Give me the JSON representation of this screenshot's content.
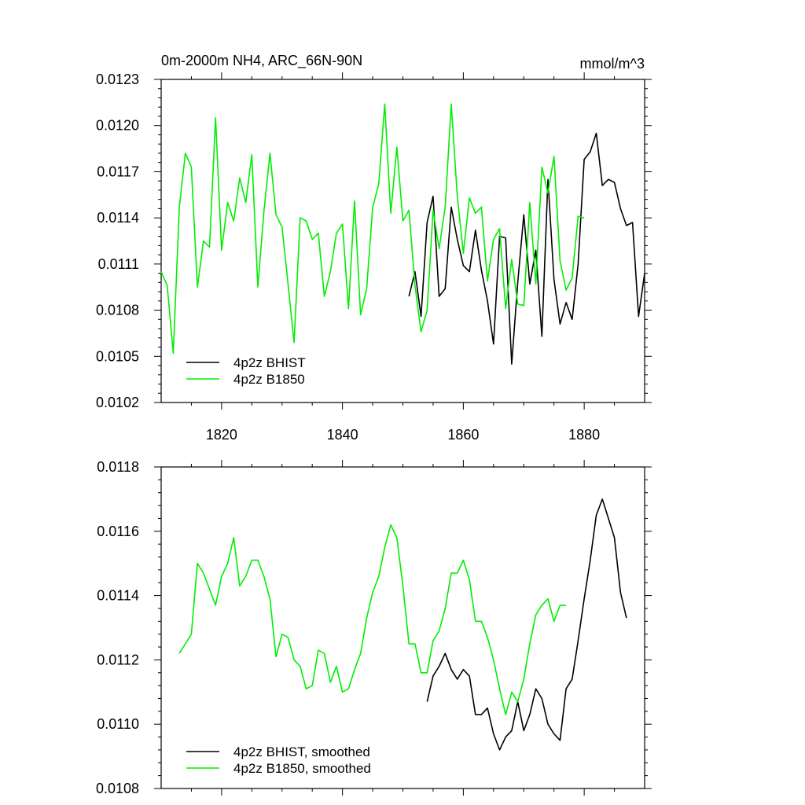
{
  "colors": {
    "bhist": "#000000",
    "b1850": "#00ee00",
    "frame": "#000000"
  },
  "chart_data": [
    {
      "type": "line",
      "title": "0m-2000m NH4, ARC_66N-90N",
      "units": "mmol/m^3",
      "xlim": [
        1810,
        1890
      ],
      "ylim": [
        0.0102,
        0.0123
      ],
      "xticks": [
        1820,
        1840,
        1860,
        1880
      ],
      "xtick_labels": [
        "1820",
        "1840",
        "1860",
        "1880"
      ],
      "yticks": [
        0.0102,
        0.0105,
        0.0108,
        0.0111,
        0.0114,
        0.0117,
        0.012,
        0.0123
      ],
      "ytick_labels": [
        "0.0102",
        "0.0105",
        "0.0108",
        "0.0111",
        "0.0114",
        "0.0117",
        "0.0120",
        "0.0123"
      ],
      "legend": "bottom-left",
      "series": [
        {
          "name": "4p2z BHIST",
          "color_key": "bhist",
          "x": [
            1851,
            1852,
            1853,
            1854,
            1855,
            1856,
            1857,
            1858,
            1859,
            1860,
            1861,
            1862,
            1863,
            1864,
            1865,
            1866,
            1867,
            1868,
            1869,
            1870,
            1871,
            1872,
            1873,
            1874,
            1875,
            1876,
            1877,
            1878,
            1879,
            1880,
            1881,
            1882,
            1883,
            1884,
            1885,
            1886,
            1887,
            1888,
            1889,
            1890
          ],
          "y": [
            0.01089,
            0.01105,
            0.01076,
            0.01137,
            0.01154,
            0.01089,
            0.01094,
            0.01147,
            0.01126,
            0.01109,
            0.01105,
            0.01132,
            0.01106,
            0.01086,
            0.01058,
            0.01128,
            0.01127,
            0.01045,
            0.01098,
            0.01142,
            0.01097,
            0.01119,
            0.01063,
            0.01165,
            0.011,
            0.01071,
            0.01085,
            0.01074,
            0.0111,
            0.01178,
            0.01183,
            0.01195,
            0.01161,
            0.01165,
            0.01163,
            0.01146,
            0.01135,
            0.01137,
            0.01076,
            0.01104
          ]
        },
        {
          "name": "4p2z B1850",
          "color_key": "b1850",
          "x": [
            1810,
            1811,
            1812,
            1813,
            1814,
            1815,
            1816,
            1817,
            1818,
            1819,
            1820,
            1821,
            1822,
            1823,
            1824,
            1825,
            1826,
            1827,
            1828,
            1829,
            1830,
            1831,
            1832,
            1833,
            1834,
            1835,
            1836,
            1837,
            1838,
            1839,
            1840,
            1841,
            1842,
            1843,
            1844,
            1845,
            1846,
            1847,
            1848,
            1849,
            1850,
            1851,
            1852,
            1853,
            1854,
            1855,
            1856,
            1857,
            1858,
            1859,
            1860,
            1861,
            1862,
            1863,
            1864,
            1865,
            1866,
            1867,
            1868,
            1869,
            1870,
            1871,
            1872,
            1873,
            1874,
            1875,
            1876,
            1877,
            1878,
            1879,
            1880
          ],
          "y": [
            0.01105,
            0.01096,
            0.01052,
            0.01147,
            0.01182,
            0.01173,
            0.01095,
            0.01125,
            0.01121,
            0.01205,
            0.01119,
            0.0115,
            0.01138,
            0.01166,
            0.0115,
            0.01181,
            0.01095,
            0.01144,
            0.01182,
            0.01142,
            0.01134,
            0.01097,
            0.01059,
            0.0114,
            0.01138,
            0.01126,
            0.0113,
            0.01089,
            0.01105,
            0.0113,
            0.01136,
            0.01081,
            0.01151,
            0.01077,
            0.01094,
            0.01147,
            0.01162,
            0.01214,
            0.01143,
            0.01186,
            0.01138,
            0.01145,
            0.01096,
            0.01066,
            0.0108,
            0.01145,
            0.0112,
            0.01147,
            0.01214,
            0.01154,
            0.01117,
            0.01153,
            0.01143,
            0.01147,
            0.01099,
            0.01126,
            0.01133,
            0.01081,
            0.01113,
            0.01084,
            0.01083,
            0.0115,
            0.01097,
            0.01173,
            0.01156,
            0.0118,
            0.01112,
            0.01093,
            0.01101,
            0.01141,
            0.0114
          ]
        }
      ]
    },
    {
      "type": "line",
      "xlim": [
        1810,
        1890
      ],
      "ylim": [
        0.0108,
        0.0118
      ],
      "xticks": [
        1820,
        1840,
        1860,
        1880
      ],
      "yticks": [
        0.0108,
        0.011,
        0.0112,
        0.0114,
        0.0116,
        0.0118
      ],
      "ytick_labels": [
        "0.0108",
        "0.0110",
        "0.0112",
        "0.0114",
        "0.0116",
        "0.0118"
      ],
      "legend": "bottom-left",
      "series": [
        {
          "name": "4p2z BHIST, smoothed",
          "color_key": "bhist",
          "x": [
            1854,
            1855,
            1856,
            1857,
            1858,
            1859,
            1860,
            1861,
            1862,
            1863,
            1864,
            1865,
            1866,
            1867,
            1868,
            1869,
            1870,
            1871,
            1872,
            1873,
            1874,
            1875,
            1876,
            1877,
            1878,
            1879,
            1880,
            1881,
            1882,
            1883,
            1884,
            1885,
            1886,
            1887
          ],
          "y": [
            0.01107,
            0.01115,
            0.01118,
            0.01122,
            0.01117,
            0.01114,
            0.01117,
            0.01115,
            0.01103,
            0.01103,
            0.01105,
            0.01097,
            0.01092,
            0.01096,
            0.01098,
            0.01107,
            0.01098,
            0.01103,
            0.01111,
            0.01108,
            0.011,
            0.01097,
            0.01095,
            0.01111,
            0.01114,
            0.01126,
            0.01139,
            0.01151,
            0.01165,
            0.0117,
            0.01164,
            0.01158,
            0.01141,
            0.01133
          ]
        },
        {
          "name": "4p2z B1850, smoothed",
          "color_key": "b1850",
          "x": [
            1813,
            1814,
            1815,
            1816,
            1817,
            1818,
            1819,
            1820,
            1821,
            1822,
            1823,
            1824,
            1825,
            1826,
            1827,
            1828,
            1829,
            1830,
            1831,
            1832,
            1833,
            1834,
            1835,
            1836,
            1837,
            1838,
            1839,
            1840,
            1841,
            1842,
            1843,
            1844,
            1845,
            1846,
            1847,
            1848,
            1849,
            1850,
            1851,
            1852,
            1853,
            1854,
            1855,
            1856,
            1857,
            1858,
            1859,
            1860,
            1861,
            1862,
            1863,
            1864,
            1865,
            1866,
            1867,
            1868,
            1869,
            1870,
            1871,
            1872,
            1873,
            1874,
            1875,
            1876,
            1877
          ],
          "y": [
            0.01122,
            0.01125,
            0.01128,
            0.0115,
            0.01147,
            0.01142,
            0.01137,
            0.01146,
            0.0115,
            0.01158,
            0.01143,
            0.01146,
            0.01151,
            0.01151,
            0.01146,
            0.01139,
            0.01121,
            0.01128,
            0.01127,
            0.0112,
            0.01118,
            0.01111,
            0.01112,
            0.01123,
            0.01122,
            0.01113,
            0.01118,
            0.0111,
            0.01111,
            0.01117,
            0.01122,
            0.01133,
            0.01141,
            0.01146,
            0.01155,
            0.01162,
            0.01158,
            0.01143,
            0.01125,
            0.01125,
            0.01116,
            0.01116,
            0.01126,
            0.01129,
            0.01136,
            0.01147,
            0.01147,
            0.01151,
            0.01145,
            0.01132,
            0.01132,
            0.01127,
            0.0112,
            0.01111,
            0.01103,
            0.0111,
            0.01107,
            0.01114,
            0.01125,
            0.01134,
            0.01137,
            0.01139,
            0.01132,
            0.01137,
            0.01137
          ]
        }
      ]
    }
  ]
}
